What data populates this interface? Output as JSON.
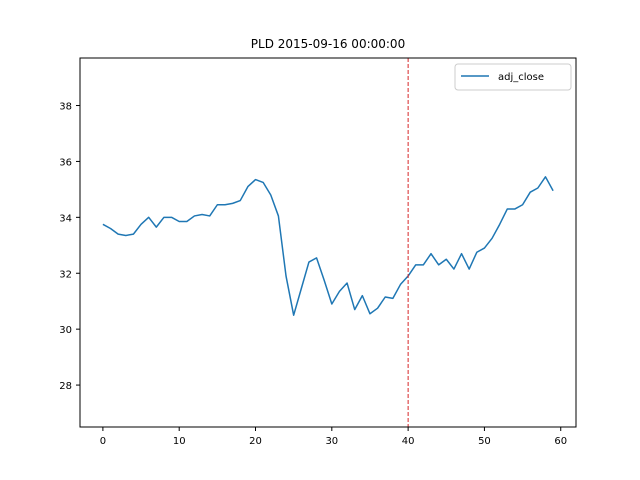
{
  "chart_data": {
    "type": "line",
    "title": "PLD 2015-09-16 00:00:00",
    "xlabel": "",
    "ylabel": "",
    "xlim": [
      -3,
      62
    ],
    "ylim": [
      26.5,
      39.7
    ],
    "x_ticks": [
      0,
      10,
      20,
      30,
      40,
      50,
      60
    ],
    "y_ticks": [
      28,
      30,
      32,
      34,
      36,
      38
    ],
    "grid": false,
    "legend_position": "top-right",
    "vline": {
      "x": 40,
      "color": "#d62728",
      "style": "dashed"
    },
    "series": [
      {
        "name": "adj_close",
        "color": "#1f77b4",
        "x": [
          0,
          1,
          2,
          3,
          4,
          5,
          6,
          7,
          8,
          9,
          10,
          11,
          12,
          13,
          14,
          15,
          16,
          17,
          18,
          19,
          20,
          21,
          22,
          23,
          24,
          25,
          26,
          27,
          28,
          29,
          30,
          31,
          32,
          33,
          34,
          35,
          36,
          37,
          38,
          39,
          40,
          41,
          42,
          43,
          44,
          45,
          46,
          47,
          48,
          49,
          50,
          51,
          52,
          53,
          54,
          55,
          56,
          57,
          58,
          59
        ],
        "values": [
          33.75,
          33.6,
          33.4,
          33.35,
          33.4,
          33.75,
          34.0,
          33.65,
          34.0,
          34.0,
          33.85,
          33.85,
          34.05,
          34.1,
          34.05,
          34.45,
          34.45,
          34.5,
          34.6,
          35.1,
          35.35,
          35.25,
          34.8,
          34.05,
          31.9,
          30.5,
          31.45,
          32.4,
          32.55,
          31.75,
          30.9,
          31.35,
          31.65,
          30.7,
          31.2,
          30.55,
          30.75,
          31.15,
          31.1,
          31.6,
          31.9,
          32.3,
          32.3,
          32.7,
          32.3,
          32.5,
          32.15,
          32.7,
          32.15,
          32.75,
          32.9,
          33.25,
          33.75,
          34.3,
          34.3,
          34.45,
          34.9,
          35.05,
          35.45,
          34.95
        ]
      }
    ]
  }
}
